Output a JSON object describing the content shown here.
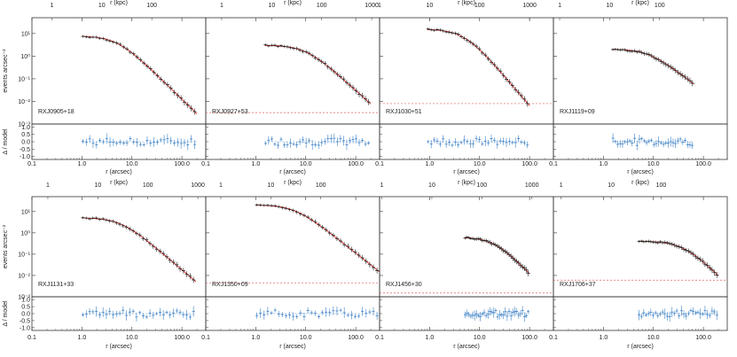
{
  "figure": {
    "top_axis_label": "r (kpc)",
    "bottom_axis_label": "r (arcsec)",
    "ylabel_profile": "events arcsec⁻²",
    "ylabel_residual": "Δ / model",
    "colors": {
      "data": "#222222",
      "model": "#d0201e",
      "background": "#e06060",
      "residual": "#3a7fc4",
      "frame": "#333333"
    }
  },
  "chart_data": [
    {
      "type": "scatter",
      "title": "RXJ0905+18",
      "r_min": 1.0,
      "r_max": 200,
      "kpc_scale": 4.0,
      "profile_top": 7.5,
      "slope": 2.1,
      "rc": 5,
      "background": null,
      "ylim": [
        0.001,
        50
      ],
      "xlim": [
        0.1,
        300
      ],
      "yticks": [
        "10¹",
        "10⁰",
        "10⁻¹",
        "10⁻²",
        "10⁻³"
      ],
      "xticks": [
        "0.1",
        "1.0",
        "10.0",
        "100.0"
      ],
      "kpc_ticks": [
        "1",
        "10",
        "100"
      ],
      "residual_ticks": [
        "1.0",
        "0.5",
        "0.0",
        "-0.5",
        "-1.0"
      ]
    },
    {
      "type": "scatter",
      "title": "RXJ0927+53",
      "r_min": 1.5,
      "r_max": 200,
      "kpc_scale": 4.8,
      "profile_top": 3.0,
      "slope": 2.0,
      "rc": 10,
      "background": 0.0032,
      "ylim": [
        0.001,
        50
      ],
      "xlim": [
        0.1,
        300
      ],
      "yticks": [],
      "xticks": [
        "0.1",
        "1.0",
        "10.0",
        "100.0"
      ],
      "kpc_ticks": [
        "1",
        "10",
        "100",
        "1000"
      ],
      "residual_ticks": []
    },
    {
      "type": "scatter",
      "title": "RXJ1030+51",
      "r_min": 0.9,
      "r_max": 100,
      "kpc_scale": 10.0,
      "profile_top": 15.0,
      "slope": 2.4,
      "rc": 5,
      "background": 0.008,
      "ylim": [
        0.001,
        50
      ],
      "xlim": [
        0.1,
        300
      ],
      "yticks": [],
      "xticks": [
        "0.1",
        "1.0",
        "10.0",
        "100.0"
      ],
      "kpc_ticks": [
        "1",
        "10",
        "100",
        "1000"
      ],
      "residual_ticks": []
    },
    {
      "type": "scatter",
      "title": "RXJ1119+09",
      "r_min": 1.5,
      "r_max": 65,
      "kpc_scale": 7.5,
      "profile_top": 2.0,
      "slope": 1.8,
      "rc": 8,
      "background": null,
      "ylim": [
        0.001,
        50
      ],
      "xlim": [
        0.1,
        300
      ],
      "yticks": [],
      "xticks": [
        "0.1",
        "1.0",
        "10.0",
        "100.0"
      ],
      "kpc_ticks": [
        "1",
        "10",
        "100"
      ],
      "residual_ticks": []
    },
    {
      "type": "scatter",
      "title": "RXJ1131+33",
      "r_min": 1.0,
      "r_max": 190,
      "kpc_scale": 4.8,
      "profile_top": 5.0,
      "slope": 2.0,
      "rc": 6,
      "background": null,
      "ylim": [
        0.001,
        50
      ],
      "xlim": [
        0.1,
        300
      ],
      "yticks": [
        "10¹",
        "10⁰",
        "10⁻¹",
        "10⁻²",
        "10⁻³"
      ],
      "xticks": [
        "0.1",
        "1.0",
        "10.0",
        "100.0"
      ],
      "kpc_ticks": [
        "1",
        "10",
        "100",
        "1000"
      ],
      "residual_ticks": [
        "1.0",
        "0.5",
        "0.0",
        "-0.5",
        "-1.0"
      ]
    },
    {
      "type": "scatter",
      "title": "RXJ1350+09",
      "r_min": 1.0,
      "r_max": 300,
      "kpc_scale": 5.0,
      "profile_top": 20.0,
      "slope": 1.9,
      "rc": 6,
      "background": 0.0045,
      "ylim": [
        0.001,
        50
      ],
      "xlim": [
        0.1,
        300
      ],
      "yticks": [],
      "xticks": [
        "0.1",
        "1.0",
        "10.0",
        "100.0"
      ],
      "kpc_ticks": [
        "1",
        "10",
        "100"
      ],
      "residual_ticks": []
    },
    {
      "type": "scatter",
      "title": "RXJ1456+30",
      "r_min": 5.0,
      "r_max": 100,
      "kpc_scale": 9.0,
      "profile_top": 0.6,
      "slope": 2.3,
      "rc": 20,
      "background": 0.0015,
      "ylim": [
        0.001,
        50
      ],
      "xlim": [
        0.1,
        300
      ],
      "yticks": [],
      "xticks": [
        "0.1",
        "1.0",
        "10.0",
        "100.0"
      ],
      "kpc_ticks": [
        "1",
        "10",
        "100",
        "1000"
      ],
      "residual_ticks": []
    },
    {
      "type": "scatter",
      "title": "RXJ1706+37",
      "r_min": 5.0,
      "r_max": 200,
      "kpc_scale": 7.0,
      "profile_top": 0.4,
      "slope": 2.2,
      "rc": 40,
      "background": 0.006,
      "ylim": [
        0.001,
        50
      ],
      "xlim": [
        0.1,
        300
      ],
      "yticks": [],
      "xticks": [
        "0.1",
        "1.0",
        "10.0",
        "100.0"
      ],
      "kpc_ticks": [
        "1",
        "10",
        "100"
      ],
      "residual_ticks": []
    }
  ]
}
